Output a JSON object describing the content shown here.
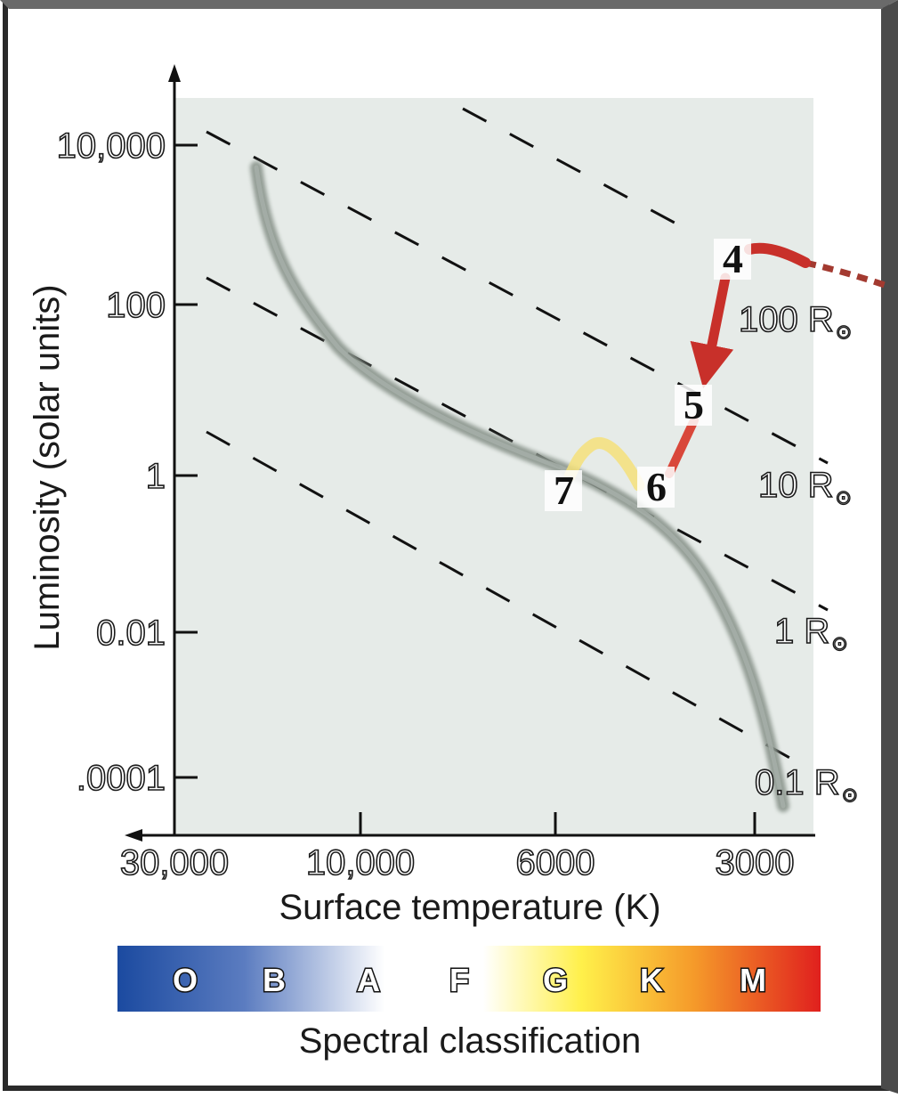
{
  "chart_data": {
    "type": "scatter",
    "xlabel": "Surface temperature (K)",
    "ylabel": "Luminosity (solar units)",
    "x_ticks": [
      "30,000",
      "10,000",
      "6000",
      "3000"
    ],
    "y_ticks": [
      "10,000",
      "100",
      "1",
      "0.01",
      ".0001"
    ],
    "radius_lines": [
      {
        "label": "100 R",
        "symbol": "⊙"
      },
      {
        "label": "10 R",
        "symbol": "⊙"
      },
      {
        "label": "1 R",
        "symbol": "⊙"
      },
      {
        "label": "0.1 R",
        "symbol": "⊙"
      }
    ],
    "evolution_stages": [
      {
        "label": "4",
        "temperature": 3000,
        "luminosity": 500
      },
      {
        "label": "5",
        "temperature": 3600,
        "luminosity": 10
      },
      {
        "label": "6",
        "temperature": 4500,
        "luminosity": 1
      },
      {
        "label": "7",
        "temperature": 5800,
        "luminosity": 1
      }
    ],
    "main_sequence": true,
    "spectral_bar": {
      "title": "Spectral classification",
      "classes": [
        "O",
        "B",
        "A",
        "F",
        "G",
        "K",
        "M"
      ]
    }
  },
  "colors": {
    "plot_background": "#e6ebe8",
    "main_sequence": "#8a948c",
    "track_red": "#c8302a",
    "track_yellow": "#f5e07a",
    "spectral_O": "#1b4aa0",
    "spectral_A": "#ffffff",
    "spectral_G": "#fff04a",
    "spectral_M": "#e0201e"
  }
}
